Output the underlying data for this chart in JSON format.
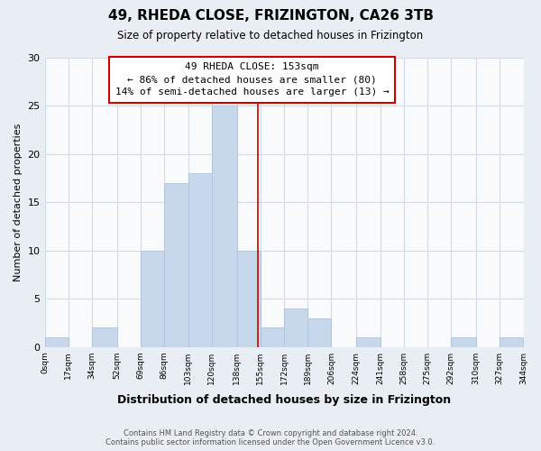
{
  "title": "49, RHEDA CLOSE, FRIZINGTON, CA26 3TB",
  "subtitle": "Size of property relative to detached houses in Frizington",
  "xlabel": "Distribution of detached houses by size in Frizington",
  "ylabel": "Number of detached properties",
  "bin_edges": [
    0,
    17,
    34,
    52,
    69,
    86,
    103,
    120,
    138,
    155,
    172,
    189,
    206,
    224,
    241,
    258,
    275,
    292,
    310,
    327,
    344
  ],
  "bin_labels": [
    "0sqm",
    "17sqm",
    "34sqm",
    "52sqm",
    "69sqm",
    "86sqm",
    "103sqm",
    "120sqm",
    "138sqm",
    "155sqm",
    "172sqm",
    "189sqm",
    "206sqm",
    "224sqm",
    "241sqm",
    "258sqm",
    "275sqm",
    "292sqm",
    "310sqm",
    "327sqm",
    "344sqm"
  ],
  "counts": [
    1,
    0,
    2,
    0,
    10,
    17,
    18,
    25,
    10,
    2,
    4,
    3,
    0,
    1,
    0,
    0,
    0,
    1,
    0,
    1
  ],
  "bar_color": "#c8d8ec",
  "bar_edge_color": "#aec4de",
  "grid_color": "#d0dce8",
  "property_line_x": 153,
  "property_line_color": "#cc0000",
  "annotation_text": "49 RHEDA CLOSE: 153sqm\n← 86% of detached houses are smaller (80)\n14% of semi-detached houses are larger (13) →",
  "annotation_box_facecolor": "#ffffff",
  "annotation_box_edgecolor": "#cc0000",
  "ylim": [
    0,
    30
  ],
  "yticks": [
    0,
    5,
    10,
    15,
    20,
    25,
    30
  ],
  "footer_text": "Contains HM Land Registry data © Crown copyright and database right 2024.\nContains public sector information licensed under the Open Government Licence v3.0.",
  "fig_facecolor": "#e8eef4",
  "ax_facecolor": "#f8fafc"
}
